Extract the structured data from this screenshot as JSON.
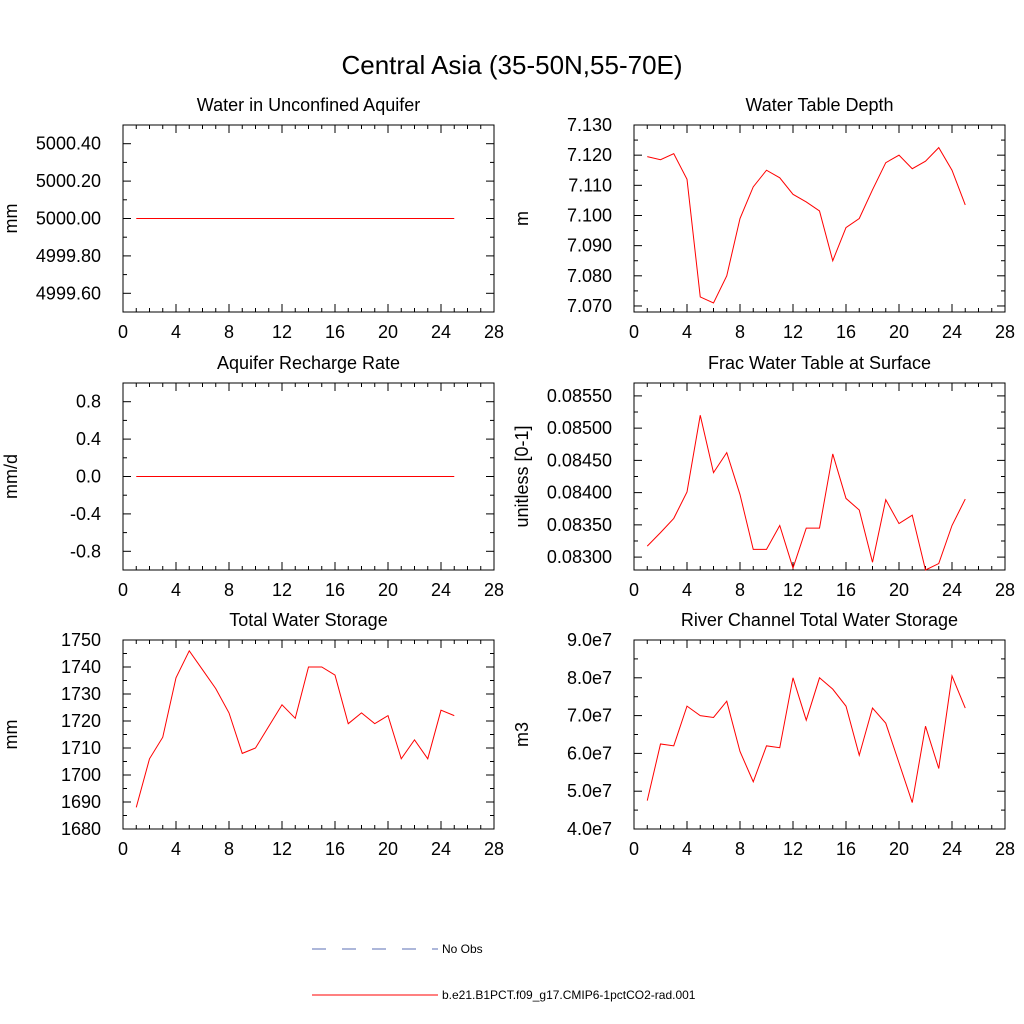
{
  "figure_title": "Central Asia (35-50N,55-70E)",
  "colors": {
    "model_line": "#ff0000",
    "obs_line": "#5b6fb6",
    "axis": "#000000"
  },
  "legend": [
    {
      "label": "No Obs",
      "style": "dashed",
      "color": "#5b6fb6"
    },
    {
      "label": "b.e21.B1PCT.f09_g17.CMIP6-1pctCO2-rad.001",
      "style": "solid",
      "color": "#ff0000"
    }
  ],
  "chart_data": [
    {
      "type": "line",
      "title": "Water in Unconfined Aquifer",
      "xlabel": "",
      "ylabel": "mm",
      "xlim": [
        0,
        28
      ],
      "ylim": [
        4999.5,
        5000.5
      ],
      "xticks": [
        "0",
        "4",
        "8",
        "12",
        "16",
        "20",
        "24",
        "28"
      ],
      "yticks": [
        {
          "value": 4999.6,
          "label": "4999.60"
        },
        {
          "value": 4999.8,
          "label": "4999.80"
        },
        {
          "value": 5000.0,
          "label": "5000.00"
        },
        {
          "value": 5000.2,
          "label": "5000.20"
        },
        {
          "value": 5000.4,
          "label": "5000.40"
        }
      ],
      "series": [
        {
          "name": "b.e21.B1PCT.f09_g17.CMIP6-1pctCO2-rad.001",
          "x": [
            1,
            25
          ],
          "y": [
            5000.0,
            5000.0
          ]
        }
      ]
    },
    {
      "type": "line",
      "title": "Water Table Depth",
      "xlabel": "",
      "ylabel": "m",
      "xlim": [
        0,
        28
      ],
      "ylim": [
        7.068,
        7.13
      ],
      "xticks": [
        "0",
        "4",
        "8",
        "12",
        "16",
        "20",
        "24",
        "28"
      ],
      "yticks": [
        {
          "value": 7.07,
          "label": "7.070"
        },
        {
          "value": 7.08,
          "label": "7.080"
        },
        {
          "value": 7.09,
          "label": "7.090"
        },
        {
          "value": 7.1,
          "label": "7.100"
        },
        {
          "value": 7.11,
          "label": "7.110"
        },
        {
          "value": 7.12,
          "label": "7.120"
        },
        {
          "value": 7.13,
          "label": "7.130"
        }
      ],
      "series": [
        {
          "name": "b.e21.B1PCT.f09_g17.CMIP6-1pctCO2-rad.001",
          "x": [
            1,
            2,
            3,
            4,
            5,
            6,
            7,
            8,
            9,
            10,
            11,
            12,
            13,
            14,
            15,
            16,
            17,
            18,
            19,
            20,
            21,
            22,
            23,
            24,
            25
          ],
          "y": [
            7.1195,
            7.1185,
            7.1205,
            7.112,
            7.073,
            7.071,
            7.08,
            7.099,
            7.1095,
            7.115,
            7.1125,
            7.107,
            7.1045,
            7.1015,
            7.085,
            7.096,
            7.099,
            7.1085,
            7.1175,
            7.12,
            7.1155,
            7.118,
            7.1225,
            7.115,
            7.1035
          ]
        }
      ]
    },
    {
      "type": "line",
      "title": "Aquifer Recharge Rate",
      "xlabel": "",
      "ylabel": "mm/d",
      "xlim": [
        0,
        28
      ],
      "ylim": [
        -1.0,
        1.0
      ],
      "xticks": [
        "0",
        "4",
        "8",
        "12",
        "16",
        "20",
        "24",
        "28"
      ],
      "yticks": [
        {
          "value": -0.8,
          "label": "-0.8"
        },
        {
          "value": -0.4,
          "label": "-0.4"
        },
        {
          "value": 0.0,
          "label": "0.0"
        },
        {
          "value": 0.4,
          "label": "0.4"
        },
        {
          "value": 0.8,
          "label": "0.8"
        }
      ],
      "series": [
        {
          "name": "b.e21.B1PCT.f09_g17.CMIP6-1pctCO2-rad.001",
          "x": [
            1,
            25
          ],
          "y": [
            0.0,
            0.0
          ]
        }
      ]
    },
    {
      "type": "line",
      "title": "Frac Water Table at Surface",
      "xlabel": "",
      "ylabel": "unitless [0-1]",
      "xlim": [
        0,
        28
      ],
      "ylim": [
        0.0828,
        0.0857
      ],
      "xticks": [
        "0",
        "4",
        "8",
        "12",
        "16",
        "20",
        "24",
        "28"
      ],
      "yticks": [
        {
          "value": 0.083,
          "label": "0.08300"
        },
        {
          "value": 0.0835,
          "label": "0.08350"
        },
        {
          "value": 0.084,
          "label": "0.08400"
        },
        {
          "value": 0.0845,
          "label": "0.08450"
        },
        {
          "value": 0.085,
          "label": "0.08500"
        },
        {
          "value": 0.0855,
          "label": "0.08550"
        }
      ],
      "series": [
        {
          "name": "b.e21.B1PCT.f09_g17.CMIP6-1pctCO2-rad.001",
          "x": [
            1,
            2,
            3,
            4,
            5,
            6,
            7,
            8,
            9,
            10,
            11,
            12,
            13,
            14,
            15,
            16,
            17,
            18,
            19,
            20,
            21,
            22,
            23,
            24,
            25
          ],
          "y": [
            0.08317,
            0.08338,
            0.0836,
            0.08401,
            0.0852,
            0.08431,
            0.08462,
            0.08397,
            0.08312,
            0.08312,
            0.08349,
            0.08283,
            0.08345,
            0.08345,
            0.0846,
            0.08391,
            0.08373,
            0.08292,
            0.08389,
            0.08352,
            0.08365,
            0.0828,
            0.0829,
            0.08349,
            0.0839
          ]
        }
      ]
    },
    {
      "type": "line",
      "title": "Total Water Storage",
      "xlabel": "",
      "ylabel": "mm",
      "xlim": [
        0,
        28
      ],
      "ylim": [
        1680,
        1750
      ],
      "xticks": [
        "0",
        "4",
        "8",
        "12",
        "16",
        "20",
        "24",
        "28"
      ],
      "yticks": [
        {
          "value": 1680,
          "label": "1680"
        },
        {
          "value": 1690,
          "label": "1690"
        },
        {
          "value": 1700,
          "label": "1700"
        },
        {
          "value": 1710,
          "label": "1710"
        },
        {
          "value": 1720,
          "label": "1720"
        },
        {
          "value": 1730,
          "label": "1730"
        },
        {
          "value": 1740,
          "label": "1740"
        },
        {
          "value": 1750,
          "label": "1750"
        }
      ],
      "series": [
        {
          "name": "b.e21.B1PCT.f09_g17.CMIP6-1pctCO2-rad.001",
          "x": [
            1,
            2,
            3,
            4,
            5,
            6,
            7,
            8,
            9,
            10,
            11,
            12,
            13,
            14,
            15,
            16,
            17,
            18,
            19,
            20,
            21,
            22,
            23,
            24,
            25
          ],
          "y": [
            1688,
            1706,
            1714,
            1736,
            1746,
            1739,
            1732,
            1723,
            1708,
            1710,
            1718,
            1726,
            1721,
            1740,
            1740,
            1737,
            1719,
            1723,
            1719,
            1722,
            1706,
            1713,
            1706,
            1724,
            1722
          ]
        }
      ]
    },
    {
      "type": "line",
      "title": "River Channel Total Water Storage",
      "xlabel": "",
      "ylabel": "m3",
      "xlim": [
        0,
        28
      ],
      "ylim": [
        40000000.0,
        90000000.0
      ],
      "xticks": [
        "0",
        "4",
        "8",
        "12",
        "16",
        "20",
        "24",
        "28"
      ],
      "yticks": [
        {
          "value": 40000000.0,
          "label": "4.0e7"
        },
        {
          "value": 50000000.0,
          "label": "5.0e7"
        },
        {
          "value": 60000000.0,
          "label": "6.0e7"
        },
        {
          "value": 70000000.0,
          "label": "7.0e7"
        },
        {
          "value": 80000000.0,
          "label": "8.0e7"
        },
        {
          "value": 90000000.0,
          "label": "9.0e7"
        }
      ],
      "series": [
        {
          "name": "b.e21.B1PCT.f09_g17.CMIP6-1pctCO2-rad.001",
          "x": [
            1,
            2,
            3,
            4,
            5,
            6,
            7,
            8,
            9,
            10,
            11,
            12,
            13,
            14,
            15,
            16,
            17,
            18,
            19,
            20,
            21,
            22,
            23,
            24,
            25
          ],
          "y": [
            47500000.0,
            62500000.0,
            62000000.0,
            72500000.0,
            70000000.0,
            69500000.0,
            73800000.0,
            60500000.0,
            52500000.0,
            62000000.0,
            61500000.0,
            80000000.0,
            68800000.0,
            80000000.0,
            77000000.0,
            72500000.0,
            59500000.0,
            72000000.0,
            68000000.0,
            57500000.0,
            47000000.0,
            67200000.0,
            56000000.0,
            80500000.0,
            72000000.0
          ]
        }
      ]
    }
  ]
}
